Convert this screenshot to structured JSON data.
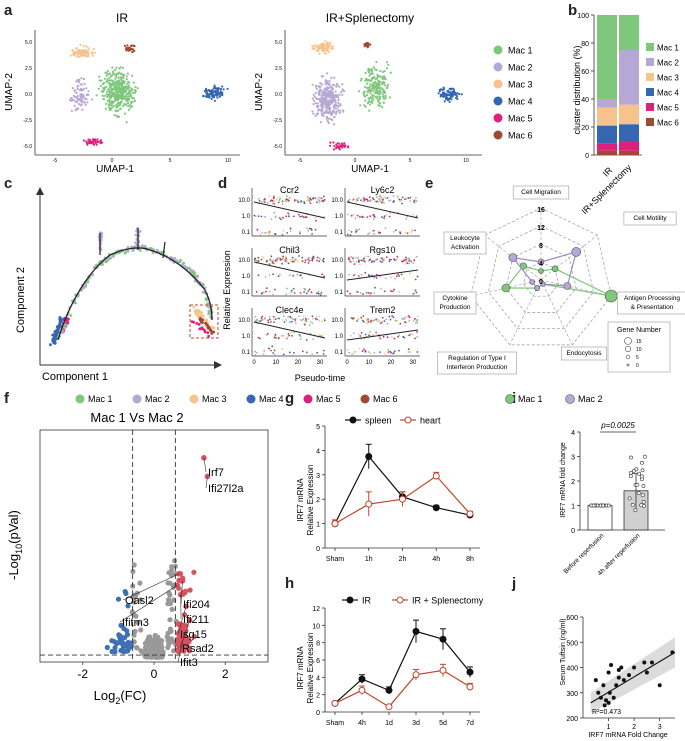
{
  "panels": {
    "a": {
      "letter": "a",
      "left_title": "IR",
      "right_title": "IR+Splenectomy",
      "xlabel": "UMAP-1",
      "ylabel": "UMAP-2",
      "xticks": [
        "-5",
        "0",
        "5",
        "10"
      ],
      "yticks": [
        "5.0",
        "2.5",
        "0.0",
        "-2.5",
        "-5.0"
      ],
      "legend": [
        {
          "name": "Mac 1",
          "color": "#7ec77b"
        },
        {
          "name": "Mac 2",
          "color": "#b7a7d4"
        },
        {
          "name": "Mac 3",
          "color": "#f7c28b"
        },
        {
          "name": "Mac 4",
          "color": "#3567b0"
        },
        {
          "name": "Mac 5",
          "color": "#e01f7a"
        },
        {
          "name": "Mac 6",
          "color": "#9e4a33"
        }
      ]
    },
    "b": {
      "letter": "b"
    },
    "c": {
      "letter": "c",
      "xlabel": "Component 1",
      "ylabel": "Component 2",
      "legend": [
        "Mac 1",
        "Mac 2",
        "Mac 3",
        "Mac 4",
        "Mac 5",
        "Mac 6"
      ]
    },
    "d": {
      "letter": "d",
      "genes": [
        "Ccr2",
        "Ly6c2",
        "Chil3",
        "Rgs10",
        "Clec4e",
        "Trem2"
      ],
      "ylabel": "Relative Expression",
      "xlabel": "Pseudo-time",
      "yticks": [
        "10.0",
        "1.0",
        "0.1"
      ],
      "xticks": [
        "0",
        "10",
        "20",
        "30"
      ]
    },
    "e": {
      "letter": "e",
      "axes": [
        "Cell Migration",
        "Cell Motility",
        "Antigen Processing\n& Presentation",
        "Endocytosis",
        "Regulation of Type I\nInterferon Production",
        "Cytokine\nProduction",
        "Leukocyte\nActivation"
      ],
      "rings": [
        "16",
        "12",
        "8",
        "4",
        "0"
      ],
      "mac1_values": [
        2,
        4,
        16,
        1,
        2,
        8,
        5
      ],
      "mac2_values": [
        4,
        10,
        6,
        1,
        2,
        2,
        8
      ],
      "legend": [
        "Mac 1",
        "Mac 2"
      ],
      "size_legend_title": "Gene Number",
      "size_legend_values": [
        "15",
        "10",
        "5",
        "0"
      ]
    },
    "f": {
      "letter": "f",
      "title": "Mac 1 Vs Mac 2",
      "xlabel": "Log",
      "xlabel_sub": "2",
      "xlabel_tail": "(FC)",
      "ylabel_pre": "-Log",
      "ylabel_sub": "10",
      "ylabel_tail": "(pVal)"
    },
    "g": {
      "letter": "g",
      "ylabel1": "IRF7 mRNA",
      "ylabel2": "Relative Expression"
    },
    "h": {
      "letter": "h",
      "ylabel1": "IRF7 mRNA",
      "ylabel2": "Relative Expression"
    },
    "i": {
      "letter": "i",
      "pvalue": "p=0.0025",
      "ylabel": "IRF7 mRNA fold change",
      "yticks": [
        "0",
        "1",
        "2",
        "3",
        "4"
      ]
    },
    "j": {
      "letter": "j",
      "ylabel": "Serum Tuftsin (ng/ml)",
      "xlabel": "IRF7 mRNA Fold Change",
      "r2": "R²=0.473",
      "yticks": [
        "200",
        "300",
        "400",
        "500",
        "600"
      ],
      "xticks": [
        "1",
        "2",
        "3"
      ]
    }
  },
  "chart_data": [
    {
      "type": "bar",
      "id": "b",
      "stacked": true,
      "title": "",
      "ylabel": "cluster distribution (%)",
      "categories": [
        "IR",
        "IR+Splenectomy"
      ],
      "ylim": [
        0,
        100
      ],
      "yticks": [
        0,
        20,
        40,
        60,
        80,
        100
      ],
      "series": [
        {
          "name": "Mac 6",
          "color": "#9e4a33",
          "values": [
            3,
            3
          ]
        },
        {
          "name": "Mac 5",
          "color": "#e01f7a",
          "values": [
            5,
            7
          ]
        },
        {
          "name": "Mac 4",
          "color": "#3567b0",
          "values": [
            13,
            12
          ]
        },
        {
          "name": "Mac 3",
          "color": "#f7c28b",
          "values": [
            13,
            14
          ]
        },
        {
          "name": "Mac 2",
          "color": "#b7a7d4",
          "values": [
            6,
            39
          ]
        },
        {
          "name": "Mac 1",
          "color": "#7ec77b",
          "values": [
            60,
            25
          ]
        }
      ],
      "legend": [
        "Mac 1",
        "Mac 2",
        "Mac 3",
        "Mac 4",
        "Mac 5",
        "Mac 6"
      ]
    },
    {
      "type": "line",
      "id": "g",
      "categories": [
        "Sham",
        "1h",
        "2h",
        "4h",
        "8h"
      ],
      "ylim": [
        0,
        5
      ],
      "yticks": [
        0,
        1,
        2,
        3,
        4,
        5
      ],
      "ylabel": "IRF7 mRNA Relative Expression",
      "series": [
        {
          "name": "spleen",
          "color": "#111111",
          "marker": "filled",
          "values": [
            1.0,
            3.75,
            2.1,
            1.65,
            1.35
          ],
          "errors": [
            0.15,
            0.5,
            0.2,
            0.1,
            0.1
          ]
        },
        {
          "name": "heart",
          "color": "#c0452b",
          "marker": "open",
          "values": [
            1.0,
            1.8,
            2.0,
            2.95,
            1.4
          ],
          "errors": [
            0.15,
            0.5,
            0.3,
            0.15,
            0.1
          ]
        }
      ]
    },
    {
      "type": "line",
      "id": "h",
      "categories": [
        "Sham",
        "4h",
        "1d",
        "3d",
        "5d",
        "7d"
      ],
      "ylim": [
        0,
        12
      ],
      "yticks": [
        0,
        2,
        4,
        6,
        8,
        10,
        12
      ],
      "ylabel": "IRF7 mRNA Relative Expression",
      "series": [
        {
          "name": "IR",
          "color": "#111111",
          "marker": "filled",
          "values": [
            1.0,
            3.8,
            2.5,
            9.3,
            8.4,
            4.6
          ],
          "errors": [
            0.15,
            0.5,
            0.4,
            1.3,
            1.2,
            0.6
          ]
        },
        {
          "name": "IR + Splenectomy",
          "color": "#c0452b",
          "marker": "open",
          "values": [
            1.0,
            2.5,
            0.6,
            4.3,
            4.8,
            2.9
          ],
          "errors": [
            0.15,
            0.5,
            0.2,
            0.6,
            0.7,
            0.4
          ]
        }
      ]
    },
    {
      "type": "scatter",
      "id": "f",
      "title": "Mac 1 Vs Mac 2",
      "xlabel": "Log2(FC)",
      "ylabel": "-Log10(pVal)",
      "xlim": [
        -3.2,
        3.2
      ],
      "ylim": [
        0,
        100
      ],
      "xticks": [
        -2,
        0,
        2
      ],
      "thresholds": {
        "fc": [
          -0.6,
          0.6
        ],
        "pval": 3
      },
      "labeled_genes": [
        {
          "name": "Irf7",
          "x": 1.4,
          "y": 88
        },
        {
          "name": "Ifi27l2a",
          "x": 1.5,
          "y": 80
        },
        {
          "name": "Oasl2",
          "x": 0.7,
          "y": 38
        },
        {
          "name": "Ifitm3",
          "x": 0.65,
          "y": 33
        },
        {
          "name": "Ifi204",
          "x": 0.8,
          "y": 35
        },
        {
          "name": "Ifi211",
          "x": 0.75,
          "y": 29
        },
        {
          "name": "Isg15",
          "x": 0.9,
          "y": 24
        },
        {
          "name": "Rsad2",
          "x": 1.0,
          "y": 18
        },
        {
          "name": "Ifit3",
          "x": 0.85,
          "y": 12
        }
      ]
    },
    {
      "type": "bar",
      "id": "i",
      "categories": [
        "Before reperfusion",
        "4h after reperfusion"
      ],
      "values": [
        1.0,
        1.6
      ],
      "errors": [
        0.03,
        0.7
      ],
      "ylim": [
        0,
        4
      ],
      "ylabel": "IRF7 mRNA fold change"
    },
    {
      "type": "scatter",
      "id": "j",
      "xlabel": "IRF7 mRNA Fold Change",
      "ylabel": "Serum Tuftsin (ng/ml)",
      "xlim": [
        0,
        3.6
      ],
      "ylim": [
        200,
        600
      ],
      "r2": 0.473,
      "points": [
        [
          0.5,
          350
        ],
        [
          0.6,
          300
        ],
        [
          0.7,
          280
        ],
        [
          0.8,
          330
        ],
        [
          0.85,
          250
        ],
        [
          0.9,
          270
        ],
        [
          1.0,
          260
        ],
        [
          1.0,
          380
        ],
        [
          1.05,
          300
        ],
        [
          1.1,
          410
        ],
        [
          1.2,
          280
        ],
        [
          1.3,
          330
        ],
        [
          1.4,
          360
        ],
        [
          1.4,
          390
        ],
        [
          1.5,
          400
        ],
        [
          1.6,
          350
        ],
        [
          1.8,
          370
        ],
        [
          2.0,
          400
        ],
        [
          2.4,
          420
        ],
        [
          2.5,
          380
        ],
        [
          2.7,
          420
        ],
        [
          3.0,
          330
        ],
        [
          3.5,
          460
        ]
      ]
    }
  ]
}
